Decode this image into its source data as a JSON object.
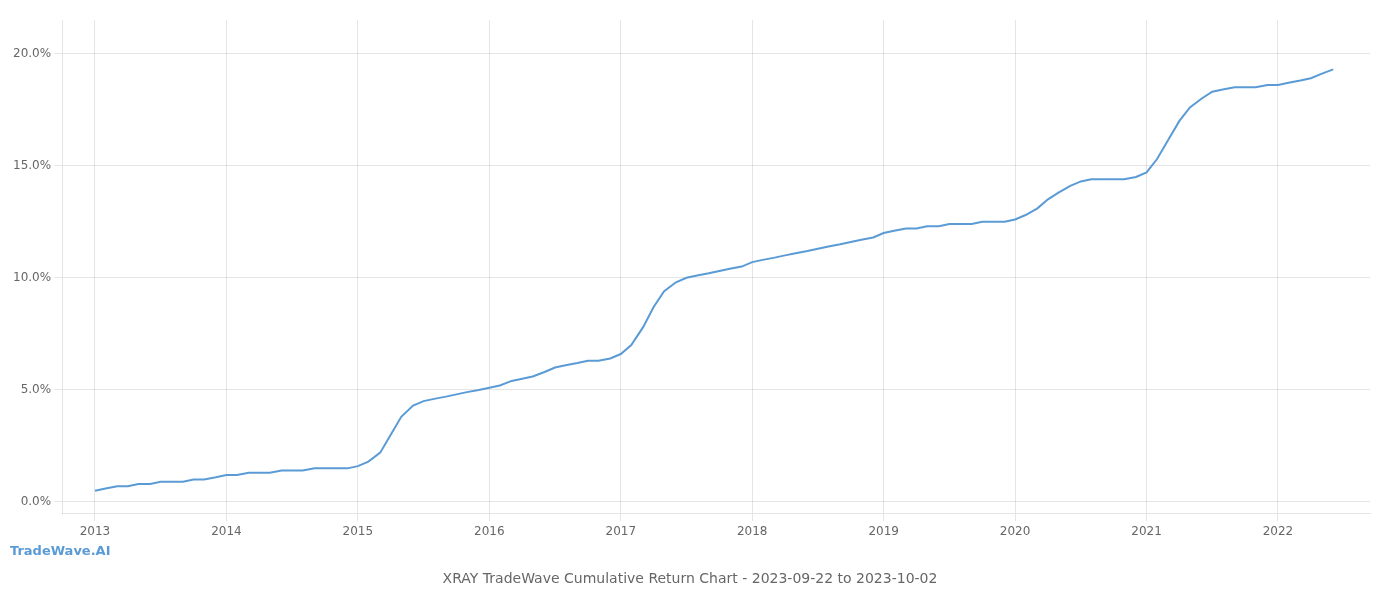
{
  "chart_data": {
    "type": "line",
    "title": "XRAY TradeWave Cumulative Return Chart - 2023-09-22 to 2023-10-02",
    "annotations": [
      "TradeWave.AI"
    ],
    "color": "#5b9bd5",
    "x": [
      2013.0,
      2013.08,
      2013.17,
      2013.25,
      2013.33,
      2013.42,
      2013.5,
      2013.58,
      2013.67,
      2013.75,
      2013.83,
      2013.92,
      2014.0,
      2014.08,
      2014.17,
      2014.25,
      2014.33,
      2014.42,
      2014.5,
      2014.58,
      2014.67,
      2014.75,
      2014.83,
      2014.92,
      2015.0,
      2015.08,
      2015.17,
      2015.25,
      2015.33,
      2015.42,
      2015.5,
      2015.58,
      2015.67,
      2015.75,
      2015.83,
      2015.92,
      2016.0,
      2016.08,
      2016.17,
      2016.25,
      2016.33,
      2016.42,
      2016.5,
      2016.58,
      2016.67,
      2016.75,
      2016.83,
      2016.92,
      2017.0,
      2017.08,
      2017.17,
      2017.25,
      2017.33,
      2017.42,
      2017.5,
      2017.58,
      2017.67,
      2017.75,
      2017.83,
      2017.92,
      2018.0,
      2018.08,
      2018.17,
      2018.25,
      2018.33,
      2018.42,
      2018.5,
      2018.58,
      2018.67,
      2018.75,
      2018.83,
      2018.92,
      2019.0,
      2019.08,
      2019.17,
      2019.25,
      2019.33,
      2019.42,
      2019.5,
      2019.58,
      2019.67,
      2019.75,
      2019.83,
      2019.92,
      2020.0,
      2020.08,
      2020.17,
      2020.25,
      2020.33,
      2020.42,
      2020.5,
      2020.58,
      2020.67,
      2020.75,
      2020.83,
      2020.92,
      2021.0,
      2021.08,
      2021.17,
      2021.25,
      2021.33,
      2021.42,
      2021.5,
      2021.58,
      2021.67,
      2021.75,
      2021.83,
      2021.92,
      2022.0,
      2022.08,
      2022.17,
      2022.25,
      2022.33,
      2022.42
    ],
    "values": [
      0.005,
      0.006,
      0.007,
      0.007,
      0.008,
      0.008,
      0.009,
      0.009,
      0.009,
      0.01,
      0.01,
      0.011,
      0.012,
      0.012,
      0.013,
      0.013,
      0.013,
      0.014,
      0.014,
      0.014,
      0.015,
      0.015,
      0.015,
      0.015,
      0.016,
      0.018,
      0.022,
      0.03,
      0.038,
      0.043,
      0.045,
      0.046,
      0.047,
      0.048,
      0.049,
      0.05,
      0.051,
      0.052,
      0.054,
      0.055,
      0.056,
      0.058,
      0.06,
      0.061,
      0.062,
      0.063,
      0.063,
      0.064,
      0.066,
      0.07,
      0.078,
      0.087,
      0.094,
      0.098,
      0.1,
      0.101,
      0.102,
      0.103,
      0.104,
      0.105,
      0.107,
      0.108,
      0.109,
      0.11,
      0.111,
      0.112,
      0.113,
      0.114,
      0.115,
      0.116,
      0.117,
      0.118,
      0.12,
      0.121,
      0.122,
      0.122,
      0.123,
      0.123,
      0.124,
      0.124,
      0.124,
      0.125,
      0.125,
      0.125,
      0.126,
      0.128,
      0.131,
      0.135,
      0.138,
      0.141,
      0.143,
      0.144,
      0.144,
      0.144,
      0.144,
      0.145,
      0.147,
      0.153,
      0.162,
      0.17,
      0.176,
      0.18,
      0.183,
      0.184,
      0.185,
      0.185,
      0.185,
      0.186,
      0.186,
      0.187,
      0.188,
      0.189,
      0.191,
      0.193
    ],
    "xlim": [
      2012.75,
      2022.7
    ],
    "xticks": [
      2013,
      2014,
      2015,
      2016,
      2017,
      2018,
      2019,
      2020,
      2021,
      2022
    ],
    "ylim": [
      -0.005,
      0.215
    ],
    "yticks": [
      {
        "value": 0.0,
        "label": "0.0%"
      },
      {
        "value": 0.05,
        "label": "5.0%"
      },
      {
        "value": 0.1,
        "label": "10.0%"
      },
      {
        "value": 0.15,
        "label": "15.0%"
      },
      {
        "value": 0.2,
        "label": "20.0%"
      }
    ],
    "grid": true
  }
}
